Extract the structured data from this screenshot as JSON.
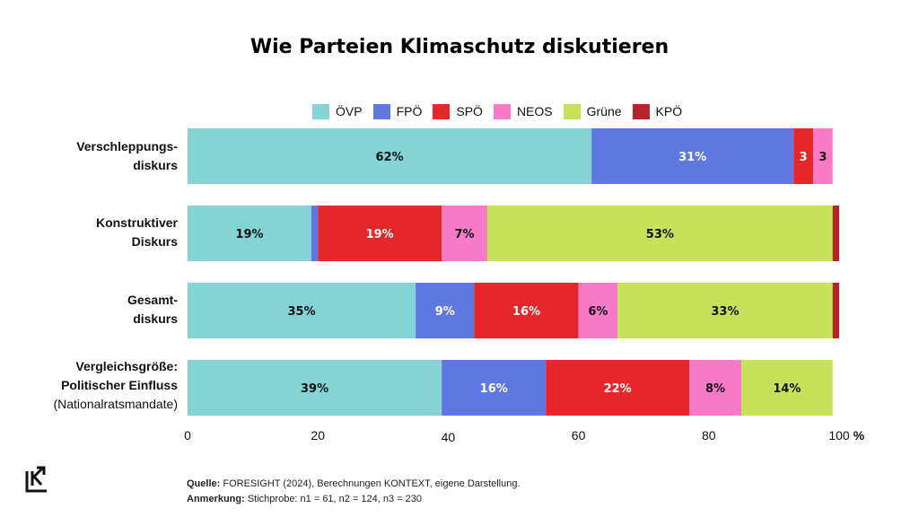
{
  "title": "Wie Parteien Klimaschutz diskutieren",
  "footer": {
    "source_label": "Quelle:",
    "source_text": "FORESIGHT (2024), Berechnungen KONTEXT, eigene Darstellung.",
    "note_label": "Anmerkung:",
    "note_text": "Stichprobe: n1 = 61, n2 = 124, n3 = 230"
  },
  "logo_icon": "kontext-logo-icon",
  "rows": [
    {
      "line1": "Verschleppungs-",
      "line2": "diskurs",
      "line3": ""
    },
    {
      "line1": "Konstruktiver",
      "line2": "Diskurs",
      "line3": ""
    },
    {
      "line1": "Gesamt-",
      "line2": "diskurs",
      "line3": ""
    },
    {
      "line1": "Vergleichsgröße:",
      "line2": "Politischer Einfluss",
      "line3": "(Nationalratsmandate)"
    }
  ],
  "chart_data": {
    "type": "bar",
    "orientation": "horizontal",
    "stacked": true,
    "title": "Wie Parteien Klimaschutz diskutieren",
    "categories": [
      "Verschleppungsdiskurs",
      "Konstruktiver Diskurs",
      "Gesamtdiskurs",
      "Vergleichsgröße: Politischer Einfluss (Nationalratsmandate)"
    ],
    "series": [
      {
        "name": "ÖVP",
        "color": "#84d4d6",
        "values": [
          62,
          19,
          35,
          39
        ],
        "labels": [
          "62%",
          "19%",
          "35%",
          "39%"
        ]
      },
      {
        "name": "FPÖ",
        "color": "#5f77e0",
        "values": [
          31,
          1,
          9,
          16
        ],
        "labels": [
          "31%",
          "",
          "9%",
          "16%"
        ]
      },
      {
        "name": "SPÖ",
        "color": "#e5262b",
        "values": [
          3,
          19,
          16,
          22
        ],
        "labels": [
          "3",
          "19%",
          "16%",
          "22%"
        ]
      },
      {
        "name": "NEOS",
        "color": "#f97ac6",
        "values": [
          3,
          7,
          6,
          8
        ],
        "labels": [
          "3",
          "7%",
          "6%",
          "8%"
        ]
      },
      {
        "name": "Grüne",
        "color": "#c7e25a",
        "values": [
          0,
          53,
          33,
          14
        ],
        "labels": [
          "",
          "53%",
          "33%",
          "14%"
        ]
      },
      {
        "name": "KPÖ",
        "color": "#b5242b",
        "values": [
          0,
          1,
          1,
          0
        ],
        "labels": [
          "",
          "",
          "",
          ""
        ]
      }
    ],
    "xlim": [
      0,
      100
    ],
    "xticks": [
      "0",
      "20",
      "40",
      "60",
      "80",
      "100"
    ],
    "x_unit": "%",
    "legend_position": "top",
    "grid": false
  }
}
